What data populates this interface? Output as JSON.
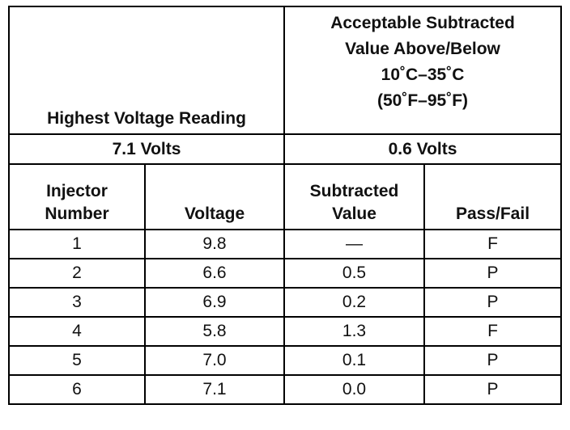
{
  "table": {
    "header": {
      "highest_voltage_reading": "Highest Voltage Reading",
      "acceptable_line1": "Acceptable Subtracted",
      "acceptable_line2": "Value Above/Below",
      "acceptable_line3": "10˚C–35˚C",
      "acceptable_line4": "(50˚F–95˚F)"
    },
    "summary": {
      "highest_value": "7.1 Volts",
      "acceptable_value": "0.6 Volts"
    },
    "columns": {
      "injector_line1": "Injector",
      "injector_line2": "Number",
      "voltage": "Voltage",
      "subtracted_line1": "Subtracted",
      "subtracted_line2": "Value",
      "pass_fail": "Pass/Fail"
    },
    "rows": [
      {
        "injector": "1",
        "voltage": "9.8",
        "subtracted": "—",
        "result": "F"
      },
      {
        "injector": "2",
        "voltage": "6.6",
        "subtracted": "0.5",
        "result": "P"
      },
      {
        "injector": "3",
        "voltage": "6.9",
        "subtracted": "0.2",
        "result": "P"
      },
      {
        "injector": "4",
        "voltage": "5.8",
        "subtracted": "1.3",
        "result": "F"
      },
      {
        "injector": "5",
        "voltage": "7.0",
        "subtracted": "0.1",
        "result": "P"
      },
      {
        "injector": "6",
        "voltage": "7.1",
        "subtracted": "0.0",
        "result": "P"
      }
    ]
  }
}
